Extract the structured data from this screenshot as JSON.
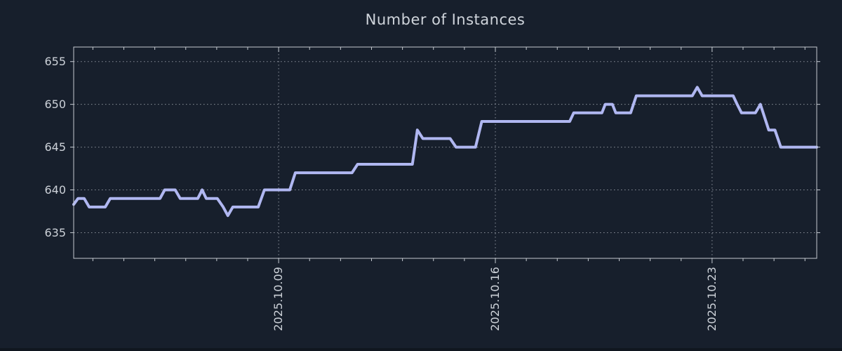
{
  "colors": {
    "background": "#171f2c",
    "line": "#b0b7f1",
    "grid": "#989ea8",
    "border": "#c5cad1",
    "text": "#ccd1d8",
    "bottom_strip": "#10161f"
  },
  "chart_data": {
    "type": "line",
    "title": "Number of Instances",
    "series_name": "instances",
    "legend": "none",
    "grid": true,
    "x_axis": {
      "tick_labels": [
        "2025.10.09",
        "2025.10.16",
        "2025.10.23"
      ],
      "major_tick_days": [
        6.62,
        13.62,
        20.62
      ],
      "minor_tick_start": 0.62,
      "minor_tick_step": 1,
      "range_days": [
        0,
        24
      ],
      "x_unit": "days; day 0 = left edge (approx 2025.10.02), weekly labeled gridlines, daily minor ticks"
    },
    "y_axis": {
      "tick_labels": [
        "635",
        "640",
        "645",
        "650",
        "655"
      ],
      "tick_values": [
        635,
        640,
        645,
        650,
        655
      ],
      "range": [
        632.0,
        656.7
      ]
    },
    "points": [
      [
        0.0,
        638.3
      ],
      [
        0.14,
        639
      ],
      [
        0.34,
        639
      ],
      [
        0.5,
        638
      ],
      [
        1.02,
        638
      ],
      [
        1.18,
        639
      ],
      [
        2.79,
        639
      ],
      [
        2.94,
        640
      ],
      [
        3.28,
        640
      ],
      [
        3.44,
        639
      ],
      [
        4.01,
        639
      ],
      [
        4.15,
        640
      ],
      [
        4.28,
        639
      ],
      [
        4.64,
        639
      ],
      [
        4.83,
        638
      ],
      [
        4.98,
        637
      ],
      [
        5.14,
        638
      ],
      [
        5.96,
        638
      ],
      [
        6.16,
        640
      ],
      [
        6.98,
        640
      ],
      [
        7.16,
        642
      ],
      [
        8.99,
        642
      ],
      [
        9.17,
        643
      ],
      [
        10.94,
        643
      ],
      [
        11.1,
        647
      ],
      [
        11.28,
        646
      ],
      [
        12.16,
        646
      ],
      [
        12.35,
        645
      ],
      [
        12.98,
        645
      ],
      [
        13.18,
        648
      ],
      [
        16.02,
        648
      ],
      [
        16.15,
        649
      ],
      [
        17.06,
        649
      ],
      [
        17.17,
        650
      ],
      [
        17.4,
        650
      ],
      [
        17.51,
        649
      ],
      [
        17.99,
        649
      ],
      [
        18.17,
        651
      ],
      [
        19.98,
        651
      ],
      [
        20.14,
        652
      ],
      [
        20.3,
        651
      ],
      [
        21.3,
        651
      ],
      [
        21.43,
        650
      ],
      [
        21.57,
        649
      ],
      [
        22.02,
        649
      ],
      [
        22.18,
        650
      ],
      [
        22.45,
        647
      ],
      [
        22.65,
        647
      ],
      [
        22.84,
        645
      ],
      [
        24.0,
        645
      ]
    ]
  }
}
